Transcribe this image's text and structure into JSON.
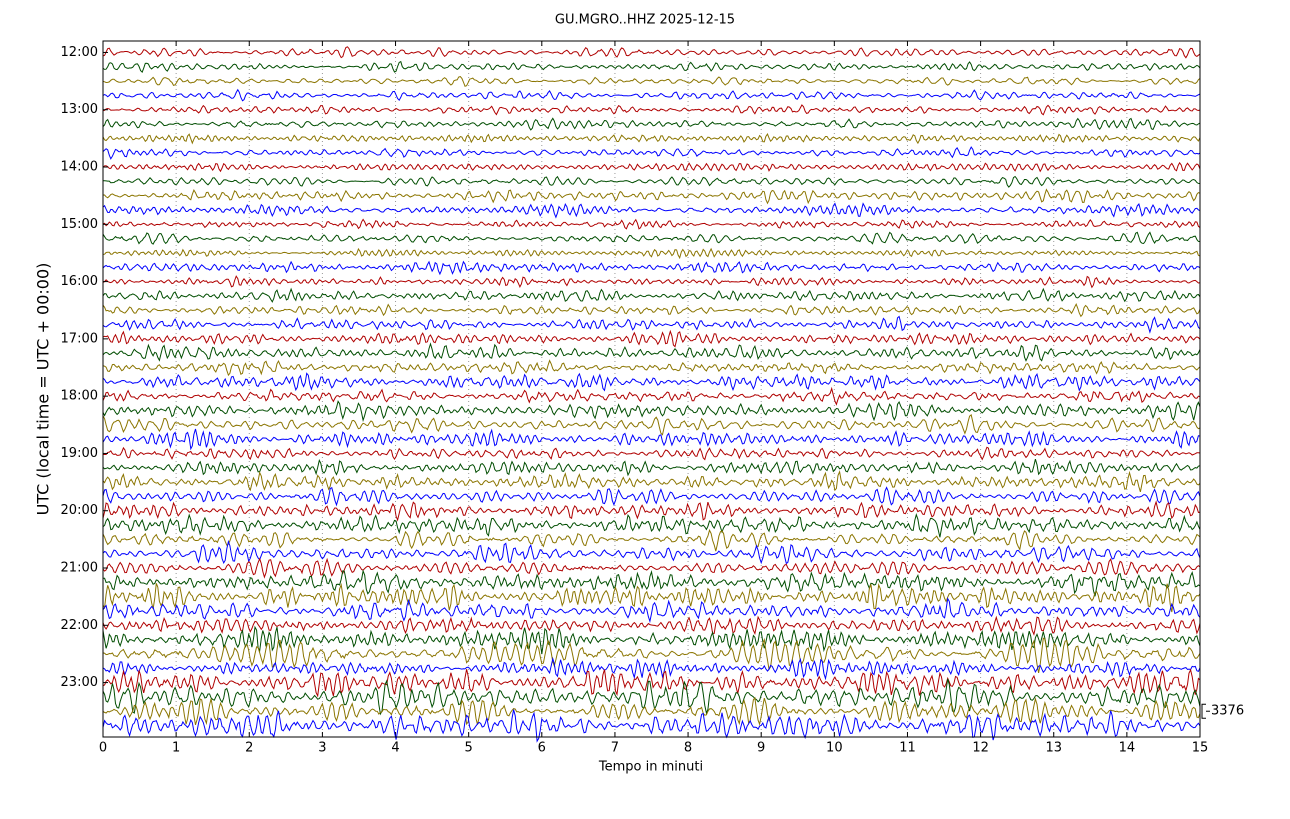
{
  "chart_data": {
    "type": "helicorder",
    "title": "GU.MGRO..HHZ 2025-12-15",
    "xlabel": "Tempo in minuti",
    "ylabel": "UTC (local time = UTC + 00:00)",
    "xlim": [
      0,
      15
    ],
    "xticks": [
      0,
      1,
      2,
      3,
      4,
      5,
      6,
      7,
      8,
      9,
      10,
      11,
      12,
      13,
      14,
      15
    ],
    "ylim": [
      11.8,
      23.95
    ],
    "yticks": [
      {
        "value": 12,
        "label": "12:00"
      },
      {
        "value": 13,
        "label": "13:00"
      },
      {
        "value": 14,
        "label": "14:00"
      },
      {
        "value": 15,
        "label": "15:00"
      },
      {
        "value": 16,
        "label": "16:00"
      },
      {
        "value": 17,
        "label": "17:00"
      },
      {
        "value": 18,
        "label": "18:00"
      },
      {
        "value": 19,
        "label": "19:00"
      },
      {
        "value": 20,
        "label": "20:00"
      },
      {
        "value": 21,
        "label": "21:00"
      },
      {
        "value": 22,
        "label": "22:00"
      },
      {
        "value": 23,
        "label": "23:00"
      }
    ],
    "traces_per_hour": 4,
    "colors": [
      "#b00000",
      "#004d00",
      "#8b7500",
      "#0000ff"
    ],
    "grid": true,
    "scale_label": 3376
  }
}
